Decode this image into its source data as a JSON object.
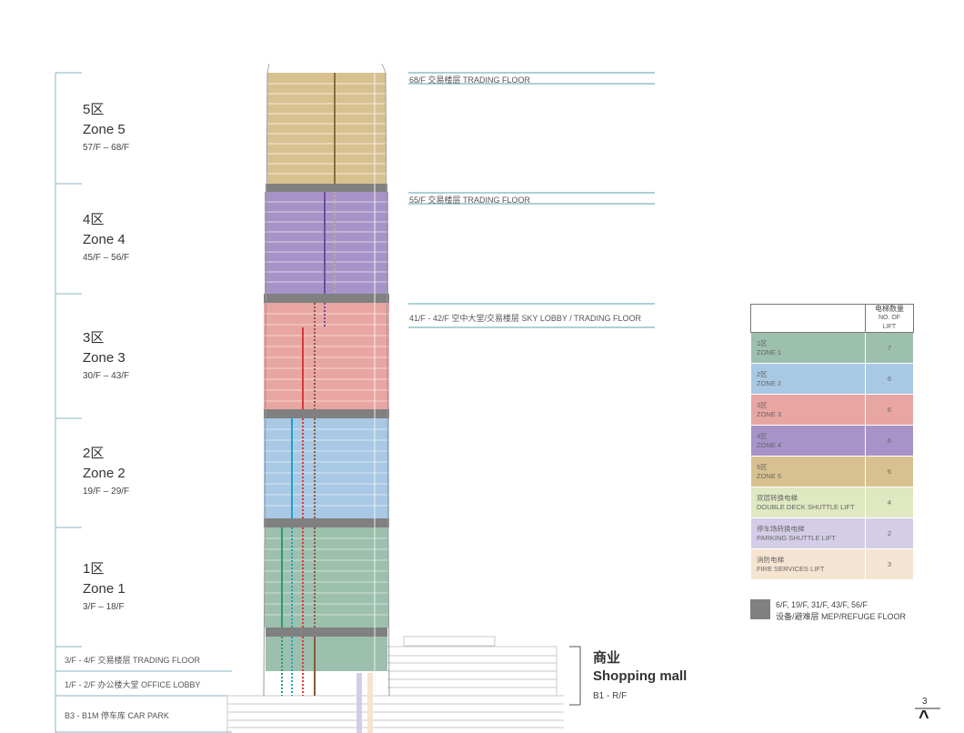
{
  "zones": [
    {
      "cn": "5区",
      "en": "Zone 5",
      "floors": "57/F – 68/F"
    },
    {
      "cn": "4区",
      "en": "Zone 4",
      "floors": "45/F – 56/F"
    },
    {
      "cn": "3区",
      "en": "Zone 3",
      "floors": "30/F – 43/F"
    },
    {
      "cn": "2区",
      "en": "Zone 2",
      "floors": "19/F – 29/F"
    },
    {
      "cn": "1区",
      "en": "Zone 1",
      "floors": "3/F – 18/F"
    }
  ],
  "podium_labels": {
    "trading": "3/F - 4/F 交易楼层 TRADING FLOOR",
    "lobby": "1/F - 2/F 办公楼大堂 OFFICE LOBBY",
    "carpark": "B3 - B1M 停车库 CAR PARK"
  },
  "callouts": {
    "f68": "68/F 交易楼层 TRADING FLOOR",
    "f55": "55/F 交易楼层 TRADING FLOOR",
    "f41": "41/F - 42/F 空中大堂/交易楼层 SKY LOBBY / TRADING FLOOR"
  },
  "mall": {
    "cn": "商业",
    "en": "Shopping mall",
    "floors": "B1 - R/F"
  },
  "legend": {
    "header_cn": "电梯数量",
    "header_en": "NO. OF LIFT",
    "rows": [
      {
        "cn": "1区",
        "en": "ZONE 1",
        "count": "7",
        "color": "#9dbfae"
      },
      {
        "cn": "2区",
        "en": "ZONE 2",
        "count": "6",
        "color": "#a8c8e4"
      },
      {
        "cn": "3区",
        "en": "ZONE 3",
        "count": "6",
        "color": "#e8a6a2"
      },
      {
        "cn": "4区",
        "en": "ZONE 4",
        "count": "6",
        "color": "#a693c7"
      },
      {
        "cn": "5区",
        "en": "ZONE 5",
        "count": "6",
        "color": "#d8c190"
      },
      {
        "cn": "双层转换电梯",
        "en": "DOUBLE DECK SHUTTLE LIFT",
        "count": "4",
        "color": "#dfe8c0"
      },
      {
        "cn": "停车场转换电梯",
        "en": "PARKING SHUTTLE LIFT",
        "count": "2",
        "color": "#d4cde8"
      },
      {
        "cn": "消防电梯",
        "en": "FIRE SERVICES LIFT",
        "count": "3",
        "color": "#f6e4d2"
      }
    ]
  },
  "refuge": {
    "floors": "6/F, 19/F, 31/F, 43/F, 56/F",
    "label": "设备/避难层 MEP/REFUGE FLOOR",
    "color": "#808080"
  },
  "page": {
    "number": "3",
    "caret": "^"
  }
}
